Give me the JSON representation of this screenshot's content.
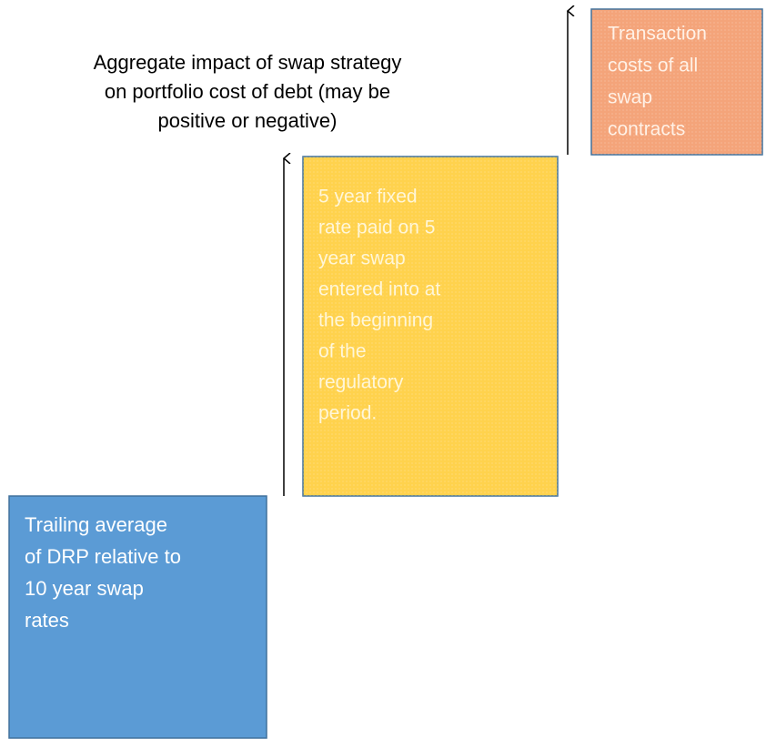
{
  "annotation": {
    "lines": [
      "Aggregate impact of swap strategy",
      "on portfolio cost of debt (may be",
      "positive or negative)"
    ]
  },
  "boxes": [
    {
      "lines": [
        "Trailing average",
        "of DRP relative to",
        "10 year swap",
        "rates"
      ]
    },
    {
      "lines": [
        "5 year fixed",
        "rate paid on 5",
        "year swap",
        "entered into at",
        "the beginning",
        "of the",
        "regulatory",
        "period."
      ]
    },
    {
      "lines": [
        "Transaction",
        "costs of all",
        "swap",
        "contracts"
      ]
    }
  ]
}
